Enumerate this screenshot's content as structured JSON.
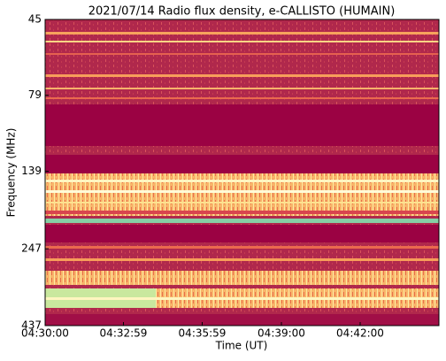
{
  "chart_data": {
    "type": "spectrogram",
    "title": "2021/07/14  Radio flux density, e-CALLISTO (HUMAIN)",
    "x_label": "Time (UT)",
    "y_label": "Frequency (MHz)",
    "xlim": [
      16200,
      17100
    ],
    "xticks": [
      {
        "value": 16200,
        "label": "04:30:00"
      },
      {
        "value": 16379,
        "label": "04:32:59"
      },
      {
        "value": 16559,
        "label": "04:35:59"
      },
      {
        "value": 16740,
        "label": "04:39:00"
      },
      {
        "value": 16920,
        "label": "04:42:00"
      }
    ],
    "ylim": [
      45,
      437
    ],
    "yticks": [
      45,
      79,
      139,
      247,
      437
    ],
    "y_log": true,
    "y_inverted": true
  }
}
